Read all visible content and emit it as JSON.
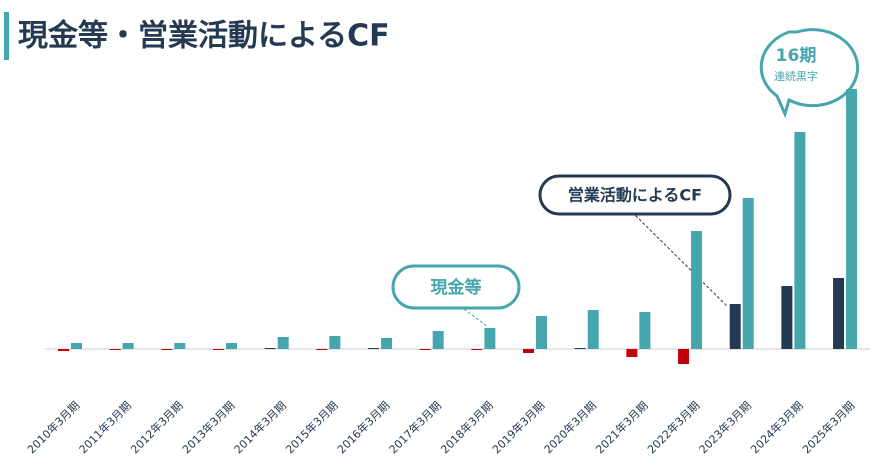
{
  "chart_data": {
    "type": "bar",
    "title": "現金等・営業活動によるCF",
    "categories": [
      "2010年3月期",
      "2011年3月期",
      "2012年3月期",
      "2013年3月期",
      "2014年3月期",
      "2015年3月期",
      "2016年3月期",
      "2017年3月期",
      "2018年3月期",
      "2019年3月期",
      "2020年3月期",
      "2021年3月期",
      "2022年3月期",
      "2023年3月期",
      "2024年3月期",
      "2025年3月期"
    ],
    "series": [
      {
        "name": "営業活動によるCF",
        "color": "#243a52",
        "negative_color": "#c0000b",
        "values": [
          -2,
          -1,
          -1,
          -1,
          1,
          -1,
          1,
          -1,
          -1,
          -4,
          1,
          -8,
          -15,
          45,
          63,
          71
        ]
      },
      {
        "name": "現金等",
        "color": "#45a6ad",
        "values": [
          6,
          6,
          6,
          6,
          12,
          13,
          11,
          18,
          21,
          33,
          39,
          37,
          118,
          151,
          217,
          260
        ]
      }
    ],
    "annotations": [
      "16期",
      "連続黒字"
    ],
    "ylim": [
      -30,
      270
    ]
  }
}
